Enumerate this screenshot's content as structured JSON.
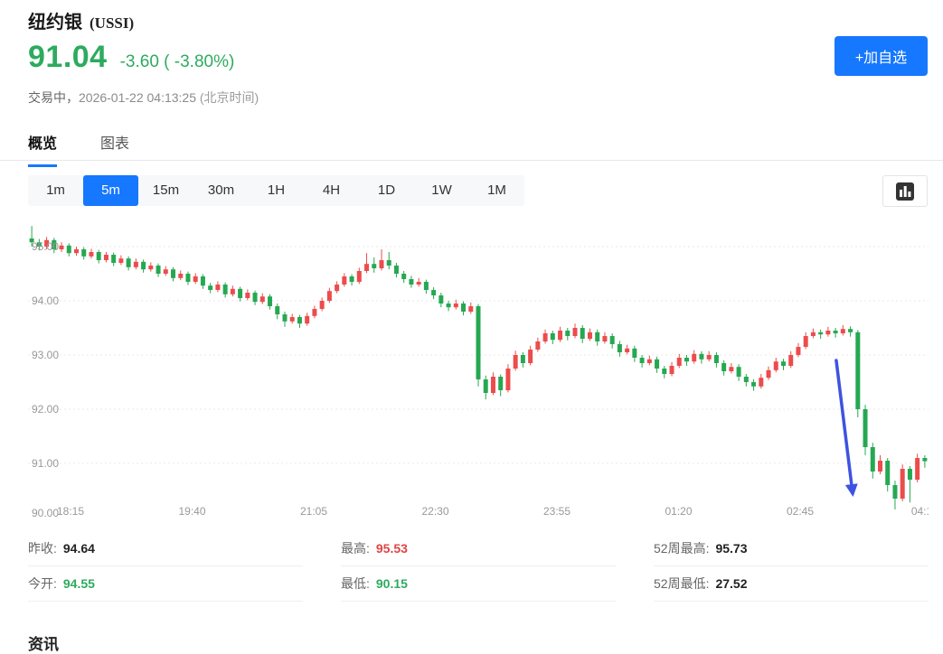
{
  "colors": {
    "accent_blue": "#1677ff",
    "price_green": "#2cab5e",
    "stat_red": "#e04444"
  },
  "header": {
    "title": "纽约银",
    "symbol": "(USSI)",
    "price": "91.04",
    "change": "-3.60 ( -3.80%)",
    "status": "交易中，",
    "timestamp": "2026-01-22 04:13:25",
    "timezone": " (北京时间)",
    "add_watchlist_label": "+加自选"
  },
  "tabs": [
    {
      "label": "概览",
      "active": true
    },
    {
      "label": "图表",
      "active": false
    }
  ],
  "timeframes": [
    {
      "label": "1m",
      "active": false
    },
    {
      "label": "5m",
      "active": true
    },
    {
      "label": "15m",
      "active": false
    },
    {
      "label": "30m",
      "active": false
    },
    {
      "label": "1H",
      "active": false
    },
    {
      "label": "4H",
      "active": false
    },
    {
      "label": "1D",
      "active": false
    },
    {
      "label": "1W",
      "active": false
    },
    {
      "label": "1M",
      "active": false
    }
  ],
  "chart_data": {
    "type": "candlestick",
    "interval": "5m",
    "y_ticks": [
      "95.00",
      "94.00",
      "93.00",
      "92.00",
      "91.00",
      "90.00"
    ],
    "x_ticks": [
      "18:15",
      "19:40",
      "21:05",
      "22:30",
      "23:55",
      "01:20",
      "02:45",
      "04:1"
    ],
    "y_range": [
      90.05,
      95.55
    ],
    "grid": "horizontal-dotted",
    "colors": {
      "up": "#ec4c4c",
      "down": "#26a852",
      "arrow": "#3e52e1"
    },
    "annotation": {
      "type": "arrow",
      "color": "#3e52e1",
      "from": [
        108.1,
        92.9
      ],
      "to": [
        110.3,
        90.45
      ],
      "meaning": "points at sharp sell-off"
    },
    "candles": [
      [
        95.15,
        95.38,
        95.0,
        95.08
      ],
      [
        95.08,
        95.14,
        94.93,
        95.0
      ],
      [
        95.0,
        95.18,
        94.95,
        95.12
      ],
      [
        95.12,
        95.16,
        94.88,
        94.95
      ],
      [
        94.95,
        95.08,
        94.9,
        95.02
      ],
      [
        95.02,
        95.06,
        94.82,
        94.88
      ],
      [
        94.88,
        95.0,
        94.83,
        94.95
      ],
      [
        94.95,
        94.99,
        94.76,
        94.82
      ],
      [
        94.82,
        94.96,
        94.78,
        94.9
      ],
      [
        94.9,
        94.94,
        94.69,
        94.75
      ],
      [
        94.75,
        94.9,
        94.71,
        94.85
      ],
      [
        94.85,
        94.89,
        94.64,
        94.7
      ],
      [
        94.7,
        94.84,
        94.66,
        94.78
      ],
      [
        94.78,
        94.82,
        94.56,
        94.62
      ],
      [
        94.62,
        94.78,
        94.58,
        94.72
      ],
      [
        94.72,
        94.76,
        94.52,
        94.58
      ],
      [
        94.58,
        94.71,
        94.54,
        94.65
      ],
      [
        94.65,
        94.69,
        94.44,
        94.5
      ],
      [
        94.5,
        94.64,
        94.46,
        94.58
      ],
      [
        94.58,
        94.62,
        94.36,
        94.42
      ],
      [
        94.42,
        94.56,
        94.38,
        94.5
      ],
      [
        94.5,
        94.54,
        94.29,
        94.35
      ],
      [
        94.35,
        94.51,
        94.31,
        94.45
      ],
      [
        94.45,
        94.49,
        94.22,
        94.28
      ],
      [
        94.28,
        94.33,
        94.14,
        94.2
      ],
      [
        94.2,
        94.36,
        94.16,
        94.3
      ],
      [
        94.3,
        94.34,
        94.06,
        94.12
      ],
      [
        94.12,
        94.28,
        94.08,
        94.22
      ],
      [
        94.22,
        94.26,
        93.99,
        94.05
      ],
      [
        94.05,
        94.21,
        94.01,
        94.15
      ],
      [
        94.15,
        94.19,
        93.92,
        93.98
      ],
      [
        93.98,
        94.14,
        93.94,
        94.08
      ],
      [
        94.08,
        94.12,
        93.84,
        93.9
      ],
      [
        93.9,
        93.95,
        93.66,
        93.75
      ],
      [
        93.75,
        93.8,
        93.52,
        93.62
      ],
      [
        93.62,
        93.76,
        93.58,
        93.7
      ],
      [
        93.7,
        93.74,
        93.5,
        93.58
      ],
      [
        93.58,
        93.78,
        93.54,
        93.72
      ],
      [
        93.72,
        93.91,
        93.68,
        93.85
      ],
      [
        93.85,
        94.06,
        93.81,
        94.0
      ],
      [
        94.0,
        94.24,
        93.96,
        94.18
      ],
      [
        94.18,
        94.36,
        94.14,
        94.3
      ],
      [
        94.3,
        94.51,
        94.26,
        94.45
      ],
      [
        94.45,
        94.49,
        94.28,
        94.35
      ],
      [
        94.35,
        94.61,
        94.31,
        94.55
      ],
      [
        94.55,
        94.88,
        94.51,
        94.68
      ],
      [
        94.68,
        94.8,
        94.52,
        94.6
      ],
      [
        94.6,
        94.95,
        94.56,
        94.75
      ],
      [
        94.75,
        94.9,
        94.58,
        94.65
      ],
      [
        94.65,
        94.7,
        94.43,
        94.5
      ],
      [
        94.5,
        94.55,
        94.33,
        94.4
      ],
      [
        94.4,
        94.46,
        94.24,
        94.3
      ],
      [
        94.3,
        94.42,
        94.26,
        94.35
      ],
      [
        94.35,
        94.39,
        94.13,
        94.2
      ],
      [
        94.2,
        94.25,
        94.03,
        94.1
      ],
      [
        94.1,
        94.15,
        93.88,
        93.95
      ],
      [
        93.95,
        94.0,
        93.81,
        93.88
      ],
      [
        93.88,
        94.02,
        93.84,
        93.95
      ],
      [
        93.95,
        93.99,
        93.73,
        93.8
      ],
      [
        93.8,
        93.97,
        93.76,
        93.9
      ],
      [
        93.9,
        93.94,
        92.42,
        92.55
      ],
      [
        92.55,
        92.62,
        92.18,
        92.3
      ],
      [
        92.3,
        92.68,
        92.26,
        92.6
      ],
      [
        92.6,
        92.64,
        92.24,
        92.35
      ],
      [
        92.35,
        92.83,
        92.31,
        92.75
      ],
      [
        92.75,
        93.08,
        92.71,
        93.0
      ],
      [
        93.0,
        93.05,
        92.77,
        92.85
      ],
      [
        92.85,
        93.17,
        92.81,
        93.1
      ],
      [
        93.1,
        93.32,
        93.06,
        93.25
      ],
      [
        93.25,
        93.47,
        93.21,
        93.4
      ],
      [
        93.4,
        93.45,
        93.2,
        93.28
      ],
      [
        93.28,
        93.52,
        93.24,
        93.45
      ],
      [
        93.45,
        93.5,
        93.27,
        93.35
      ],
      [
        93.35,
        93.58,
        93.31,
        93.5
      ],
      [
        93.5,
        93.55,
        93.22,
        93.3
      ],
      [
        93.3,
        93.49,
        93.26,
        93.42
      ],
      [
        93.42,
        93.47,
        93.17,
        93.25
      ],
      [
        93.25,
        93.42,
        93.21,
        93.35
      ],
      [
        93.35,
        93.4,
        93.12,
        93.2
      ],
      [
        93.2,
        93.26,
        92.97,
        93.05
      ],
      [
        93.05,
        93.19,
        93.01,
        93.12
      ],
      [
        93.12,
        93.17,
        92.87,
        92.95
      ],
      [
        92.95,
        93.0,
        92.77,
        92.85
      ],
      [
        92.85,
        92.99,
        92.81,
        92.92
      ],
      [
        92.92,
        92.97,
        92.67,
        92.75
      ],
      [
        92.75,
        92.8,
        92.57,
        92.65
      ],
      [
        92.65,
        92.87,
        92.61,
        92.8
      ],
      [
        92.8,
        93.02,
        92.76,
        92.95
      ],
      [
        92.95,
        93.0,
        92.8,
        92.88
      ],
      [
        92.88,
        93.09,
        92.84,
        93.02
      ],
      [
        93.02,
        93.07,
        92.84,
        92.92
      ],
      [
        92.92,
        93.07,
        92.88,
        93.0
      ],
      [
        93.0,
        93.05,
        92.77,
        92.85
      ],
      [
        92.85,
        92.9,
        92.62,
        92.7
      ],
      [
        92.7,
        92.85,
        92.66,
        92.78
      ],
      [
        92.78,
        92.83,
        92.52,
        92.6
      ],
      [
        92.6,
        92.65,
        92.42,
        92.5
      ],
      [
        92.5,
        92.55,
        92.34,
        92.42
      ],
      [
        92.42,
        92.65,
        92.38,
        92.58
      ],
      [
        92.58,
        92.79,
        92.54,
        92.72
      ],
      [
        92.72,
        92.95,
        92.68,
        92.88
      ],
      [
        92.88,
        92.93,
        92.72,
        92.8
      ],
      [
        92.8,
        93.07,
        92.76,
        93.0
      ],
      [
        93.0,
        93.22,
        92.96,
        93.15
      ],
      [
        93.15,
        93.42,
        93.11,
        93.35
      ],
      [
        93.35,
        93.49,
        93.31,
        93.42
      ],
      [
        93.42,
        93.47,
        93.3,
        93.38
      ],
      [
        93.38,
        93.52,
        93.34,
        93.45
      ],
      [
        93.45,
        93.5,
        93.32,
        93.4
      ],
      [
        93.4,
        93.55,
        93.36,
        93.48
      ],
      [
        93.48,
        93.53,
        93.34,
        93.42
      ],
      [
        93.42,
        93.46,
        91.85,
        92.0
      ],
      [
        92.0,
        92.08,
        91.15,
        91.3
      ],
      [
        91.3,
        91.38,
        90.72,
        90.85
      ],
      [
        90.85,
        91.15,
        90.8,
        91.05
      ],
      [
        91.05,
        91.1,
        90.48,
        90.6
      ],
      [
        90.6,
        90.68,
        90.15,
        90.35
      ],
      [
        90.35,
        90.98,
        90.3,
        90.9
      ],
      [
        90.9,
        90.95,
        90.28,
        90.7
      ],
      [
        90.7,
        91.18,
        90.65,
        91.1
      ],
      [
        91.1,
        91.15,
        90.92,
        91.04
      ]
    ]
  },
  "stats": {
    "columns": [
      {
        "items": [
          {
            "label": "昨收:",
            "value": "94.64"
          },
          {
            "label": "今开:",
            "value": "94.55"
          }
        ]
      },
      {
        "items": [
          {
            "label": "最高:",
            "value": "95.53"
          },
          {
            "label": "最低:",
            "value": "90.15"
          }
        ]
      },
      {
        "items": [
          {
            "label": "52周最高:",
            "value": "95.73"
          },
          {
            "label": "52周最低:",
            "value": "27.52"
          }
        ]
      }
    ]
  },
  "footer": {
    "news_label": "资讯"
  }
}
